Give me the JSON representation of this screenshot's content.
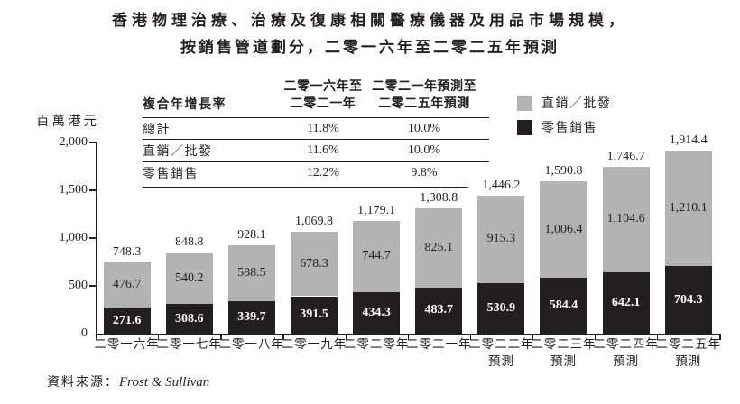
{
  "title": {
    "line1": "香港物理治療、治療及復康相關醫療儀器及用品市場規模，",
    "line2": "按銷售管道劃分，二零一六年至二零二五年預測"
  },
  "y_axis": {
    "unit_label": "百萬港元"
  },
  "cagr_table": {
    "row_header": "複合年增長率",
    "col_headers": [
      {
        "line1": "二零一六年至",
        "line2": "二零二一年"
      },
      {
        "line1": "二零二一年預測至",
        "line2": "二零二五年預測"
      }
    ],
    "rows": [
      {
        "label": "總計",
        "period1": "11.8%",
        "period2": "10.0%"
      },
      {
        "label": "直銷／批發",
        "period1": "11.6%",
        "period2": "10.0%"
      },
      {
        "label": "零售銷售",
        "period1": "12.2%",
        "period2": "9.8%"
      }
    ]
  },
  "legend": {
    "items": [
      {
        "label": "直銷／批發",
        "color": "#b3b3b3"
      },
      {
        "label": "零售銷售",
        "color": "#231f20"
      }
    ]
  },
  "source": {
    "prefix": "資料來源：",
    "name": "Frost & Sullivan"
  },
  "chart_data": {
    "type": "bar",
    "stacked": true,
    "title": "香港物理治療、治療及復康相關醫療儀器及用品市場規模，按銷售管道劃分，二零一六年至二零二五年預測",
    "ylabel": "百萬港元",
    "ylim": [
      0,
      2000
    ],
    "yticks": [
      0,
      500,
      1000,
      1500,
      2000
    ],
    "grid": false,
    "legend_position": "top-right",
    "categories": [
      "二零一六年",
      "二零一七年",
      "二零一八年",
      "二零一九年",
      "二零二零年",
      "二零二一年",
      "二零二二年",
      "二零二三年",
      "二零二四年",
      "二零二五年"
    ],
    "category_sublabels": [
      "",
      "",
      "",
      "",
      "",
      "",
      "預測",
      "預測",
      "預測",
      "預測"
    ],
    "series": [
      {
        "name": "零售銷售",
        "color": "#231f20",
        "values": [
          271.6,
          308.6,
          339.7,
          391.5,
          434.3,
          483.7,
          530.9,
          584.4,
          642.1,
          704.3
        ]
      },
      {
        "name": "直銷／批發",
        "color": "#b3b3b3",
        "values": [
          476.7,
          540.2,
          588.5,
          678.3,
          744.7,
          825.1,
          915.3,
          1006.4,
          1104.6,
          1210.1
        ]
      }
    ],
    "totals": [
      748.3,
      848.8,
      928.1,
      1069.8,
      1179.1,
      1308.8,
      1446.2,
      1590.8,
      1746.7,
      1914.4
    ]
  }
}
